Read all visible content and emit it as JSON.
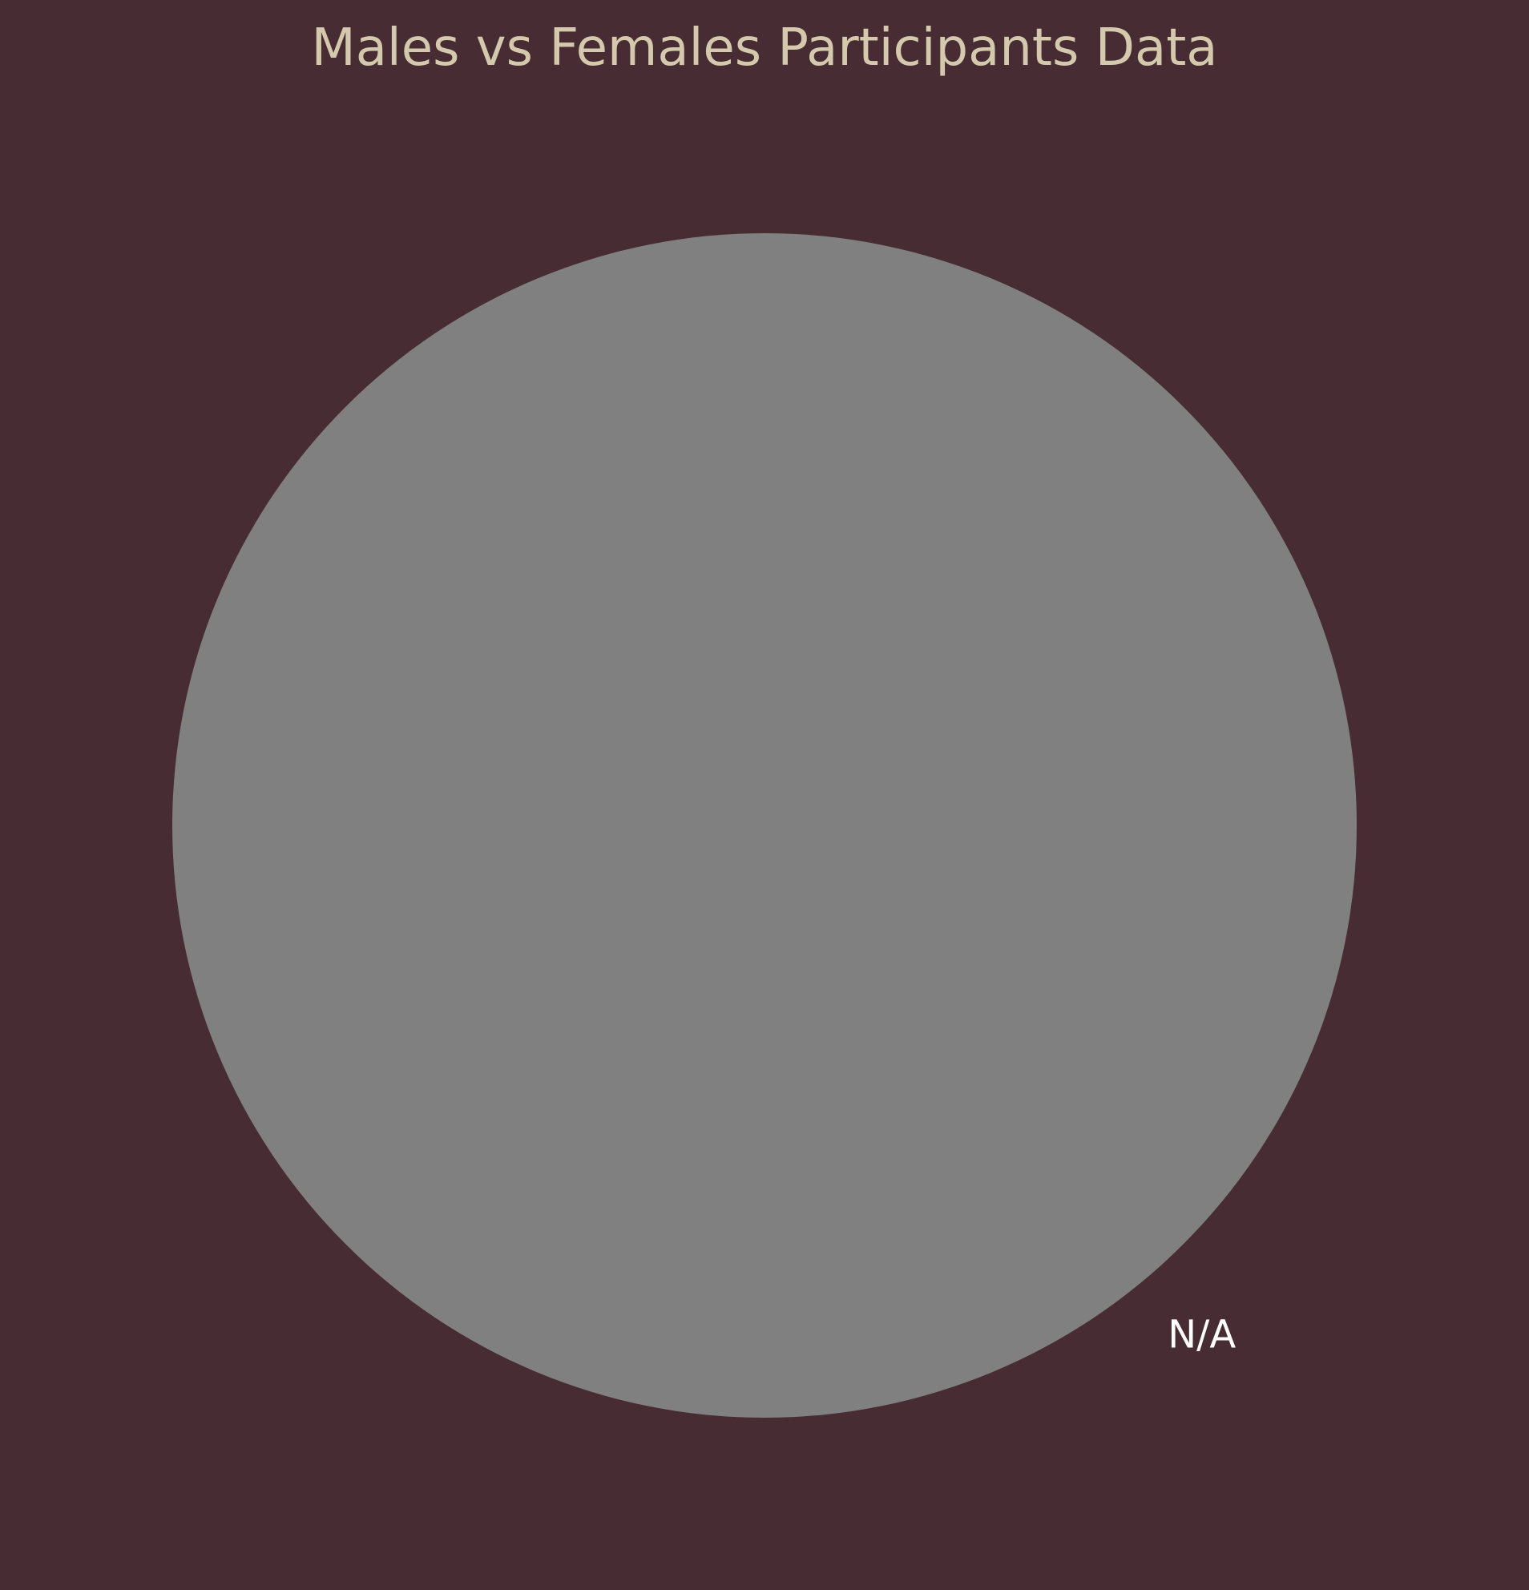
{
  "chart_data": {
    "type": "pie",
    "title": "Males vs Females Participants Data",
    "slices": [
      {
        "label": "N/A",
        "value": 100,
        "color": "#808080"
      }
    ],
    "legend": "none"
  },
  "colors": {
    "background": "#472c33",
    "title": "#d4c9ad",
    "label": "#ffffff"
  }
}
